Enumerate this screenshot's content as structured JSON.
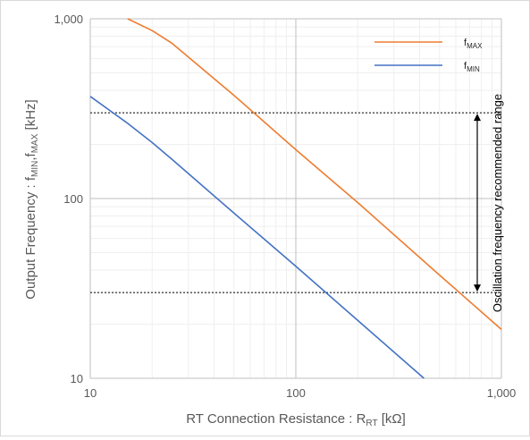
{
  "chart_data": {
    "type": "line",
    "xscale": "log",
    "yscale": "log",
    "xlim": [
      10,
      1000
    ],
    "ylim": [
      10,
      1000
    ],
    "xlabel": {
      "main": "RT Connection Resistance : R",
      "sub": "RT",
      "unit": " [kΩ]"
    },
    "ylabel": {
      "main": "Output Frequency  : f",
      "sub1": "MIN",
      "mid": ",f",
      "sub2": "MAX",
      "unit": " [kHz]"
    },
    "x_ticks": [
      {
        "value": 10,
        "label": "10"
      },
      {
        "value": 100,
        "label": "100"
      },
      {
        "value": 1000,
        "label": "1,000"
      }
    ],
    "y_ticks": [
      {
        "value": 10,
        "label": "10"
      },
      {
        "value": 100,
        "label": "100"
      },
      {
        "value": 1000,
        "label": "1,000"
      }
    ],
    "grid": true,
    "legend_position": "top-right",
    "series": [
      {
        "name": "f",
        "name_sub": "MAX",
        "color": "#ed7d31",
        "x": [
          15.2,
          20,
          25,
          50,
          100,
          200,
          500,
          1000
        ],
        "y": [
          1000,
          860,
          730,
          375,
          187,
          95,
          37.5,
          18.7
        ]
      },
      {
        "name": "f",
        "name_sub": "MIN",
        "color": "#4472c4",
        "x": [
          10,
          15,
          20,
          25,
          50,
          100,
          200,
          420
        ],
        "y": [
          370,
          265,
          205,
          165,
          83,
          42,
          21,
          10
        ]
      }
    ],
    "reference_lines": [
      {
        "y": 300,
        "style": "dotted"
      },
      {
        "y": 30,
        "style": "dotted"
      }
    ],
    "annotation": {
      "text": "Oscillation frequency recommended range",
      "arrow_from": 30,
      "arrow_to": 300
    }
  }
}
